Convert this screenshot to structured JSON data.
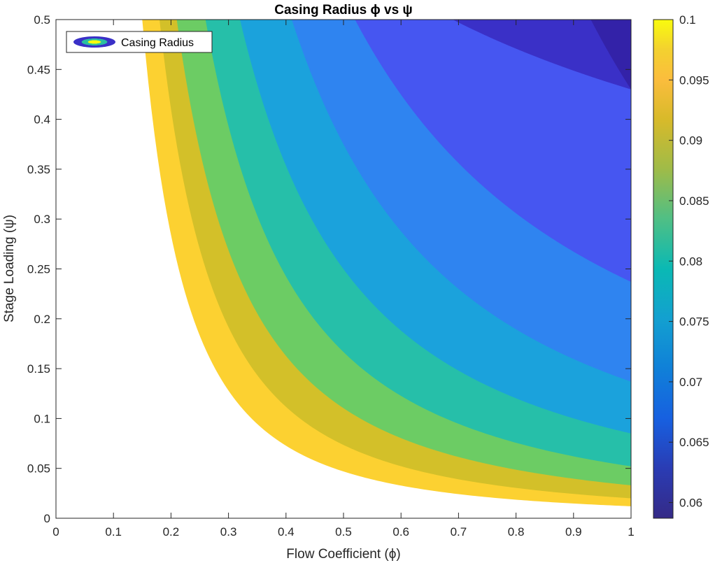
{
  "chart_data": {
    "type": "contour",
    "title": "Casing Radius ϕ vs ψ",
    "xlabel": "Flow Coefficient (ϕ)",
    "ylabel": "Stage Loading (ψ)",
    "xlim": [
      0,
      1
    ],
    "ylim": [
      0,
      0.5
    ],
    "xticks": [
      "0",
      "0.1",
      "0.2",
      "0.3",
      "0.4",
      "0.5",
      "0.6",
      "0.7",
      "0.8",
      "0.9",
      "1"
    ],
    "yticks": [
      "0",
      "0.05",
      "0.1",
      "0.15",
      "0.2",
      "0.25",
      "0.3",
      "0.35",
      "0.4",
      "0.45",
      "0.5"
    ],
    "legend": {
      "entries": [
        "Casing Radius"
      ],
      "location": "top-left"
    },
    "colorbar": {
      "range": [
        0.0587,
        0.1
      ],
      "ticks": [
        "0.06",
        "0.065",
        "0.07",
        "0.075",
        "0.08",
        "0.085",
        "0.09",
        "0.095",
        "0.1"
      ],
      "colormap": "parula"
    },
    "levels": [
      {
        "min": 0.095,
        "max": 0.1,
        "color": "#fcd131",
        "x_at_top_edge": 0.15,
        "y_at_right_edge": 0.012
      },
      {
        "min": 0.09,
        "max": 0.095,
        "color": "#d3c029",
        "x_at_top_edge": 0.18,
        "y_at_right_edge": 0.02
      },
      {
        "min": 0.085,
        "max": 0.09,
        "color": "#6ccc64",
        "x_at_top_edge": 0.21,
        "y_at_right_edge": 0.033
      },
      {
        "min": 0.08,
        "max": 0.085,
        "color": "#26bfa9",
        "x_at_top_edge": 0.26,
        "y_at_right_edge": 0.052
      },
      {
        "min": 0.075,
        "max": 0.08,
        "color": "#1ba2dc",
        "x_at_top_edge": 0.32,
        "y_at_right_edge": 0.085
      },
      {
        "min": 0.07,
        "max": 0.075,
        "color": "#2f84f0",
        "x_at_top_edge": 0.41,
        "y_at_right_edge": 0.137
      },
      {
        "min": 0.065,
        "max": 0.07,
        "color": "#4656f1",
        "x_at_top_edge": 0.52,
        "y_at_right_edge": 0.237
      },
      {
        "min": 0.06,
        "max": 0.065,
        "color": "#3a30c7",
        "x_at_top_edge": 0.69,
        "y_at_right_edge": 0.43
      },
      {
        "min": 0.0587,
        "max": 0.06,
        "color": "#3322a8",
        "x_at_top_edge": 0.93,
        "y_at_right_edge": 0.43
      }
    ],
    "grid": false
  }
}
